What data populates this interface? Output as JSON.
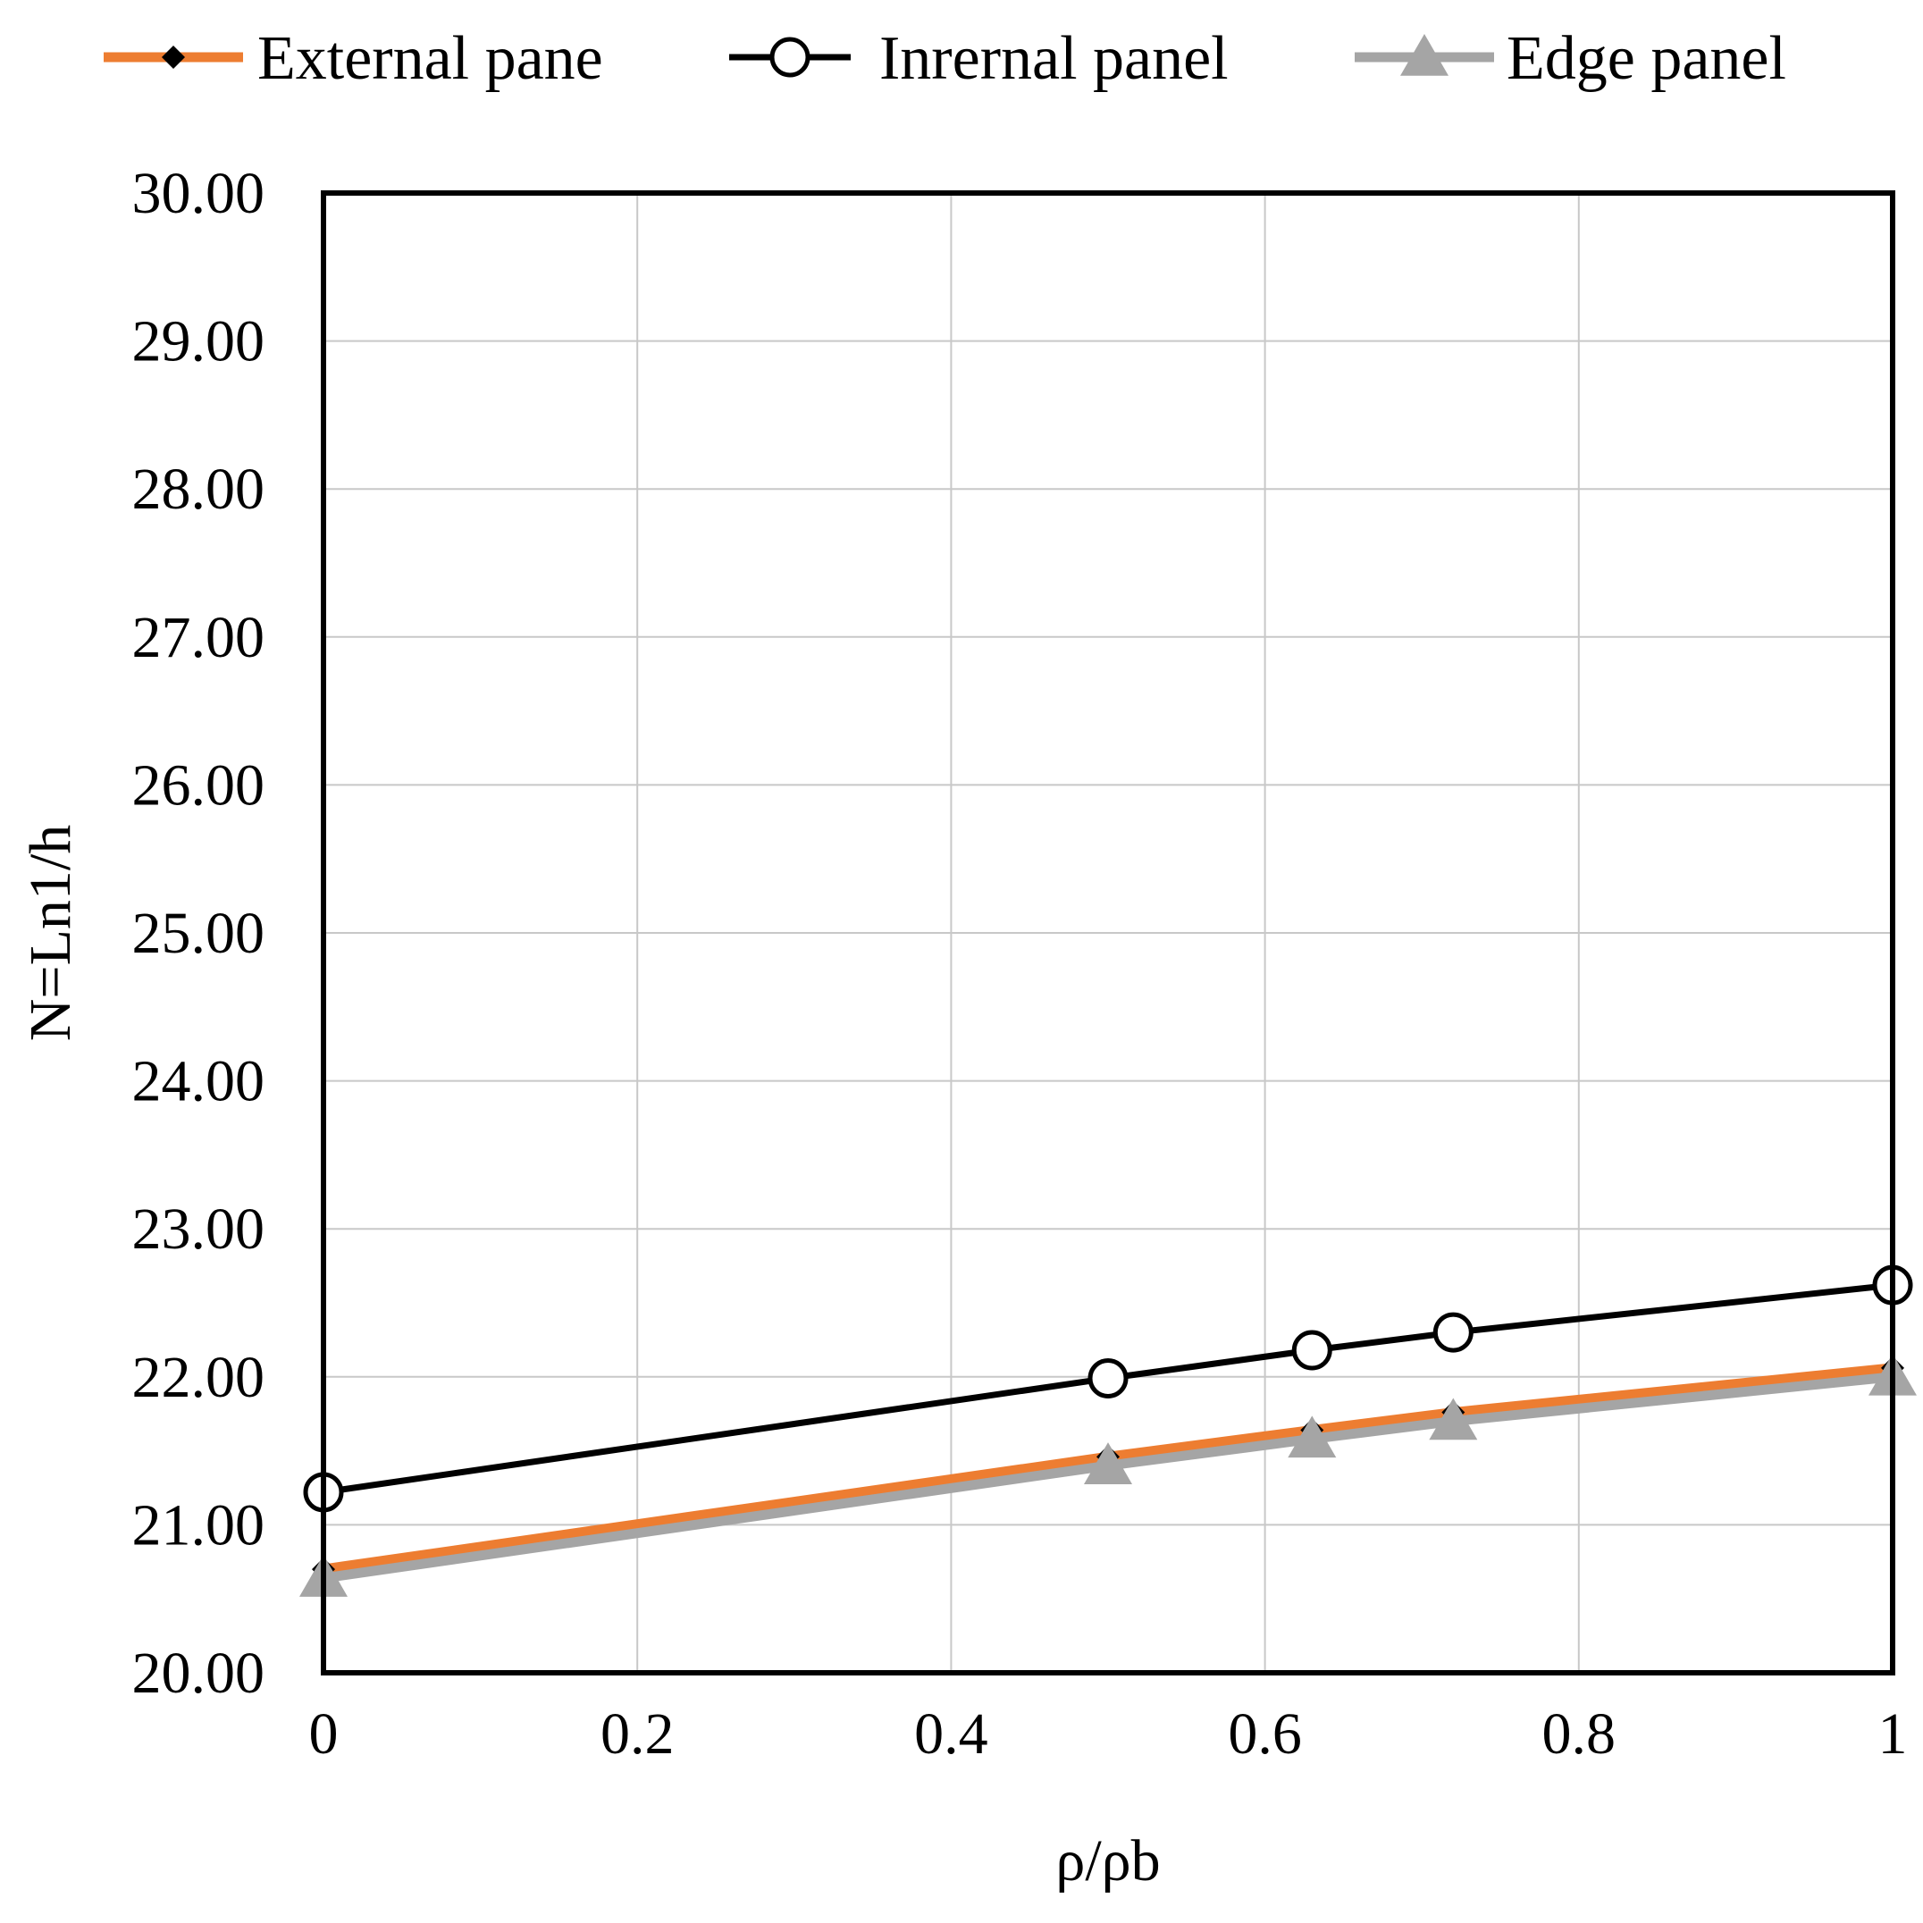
{
  "chart_data": {
    "type": "line",
    "title": "",
    "xlabel": "ρ/ρb",
    "ylabel": "N=Ln1/h",
    "xlim": [
      0,
      1
    ],
    "ylim": [
      20,
      30
    ],
    "x_ticks": [
      0,
      0.2,
      0.4,
      0.6,
      0.8,
      1
    ],
    "x_tick_labels": [
      "0",
      "0.2",
      "0.4",
      "0.6",
      "0.8",
      "1"
    ],
    "y_ticks": [
      20,
      21,
      22,
      23,
      24,
      25,
      26,
      27,
      28,
      29,
      30
    ],
    "y_tick_labels": [
      "20.00",
      "21.00",
      "22.00",
      "23.00",
      "24.00",
      "25.00",
      "26.00",
      "27.00",
      "28.00",
      "29.00",
      "30.00"
    ],
    "grid": true,
    "legend_position": "top",
    "series": [
      {
        "name": "External pane",
        "color": "#ED7D31",
        "marker": "diamond",
        "marker_color": "#000000",
        "x": [
          0,
          0.5,
          0.63,
          0.72,
          1
        ],
        "values": [
          20.7,
          21.46,
          21.64,
          21.76,
          22.06
        ]
      },
      {
        "name": "Inrernal panel",
        "color": "#000000",
        "marker": "circle",
        "marker_color": "#000000",
        "x": [
          0,
          0.5,
          0.63,
          0.72,
          1
        ],
        "values": [
          21.22,
          21.99,
          22.18,
          22.3,
          22.62
        ]
      },
      {
        "name": "Edge panel",
        "color": "#A5A5A5",
        "marker": "triangle",
        "marker_color": "#A5A5A5",
        "x": [
          0,
          0.5,
          0.63,
          0.72,
          1
        ],
        "values": [
          20.64,
          21.4,
          21.58,
          21.7,
          22.0
        ]
      }
    ]
  }
}
